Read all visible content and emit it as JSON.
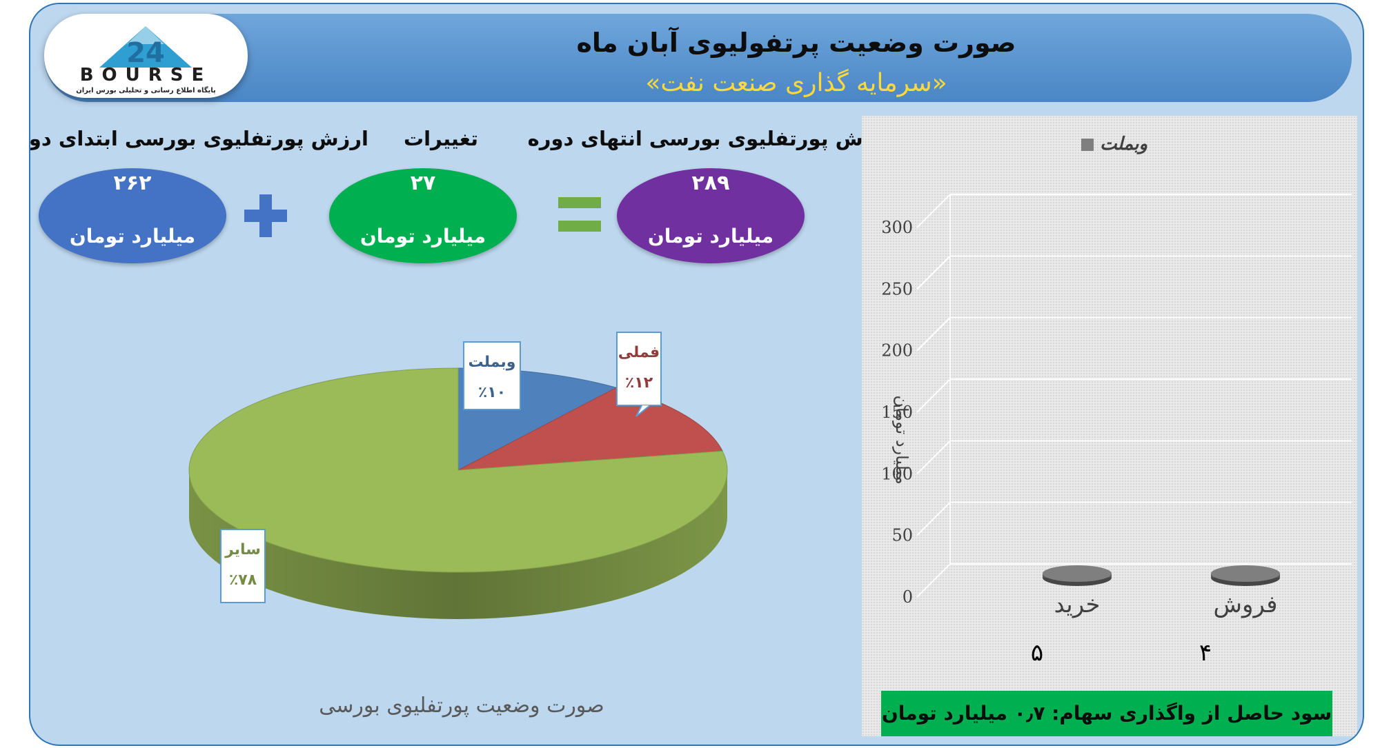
{
  "header": {
    "title": "صورت وضعیت پرتفولیوی آبان ماه",
    "subtitle": "«سرمایه گذاری صنعت نفت»",
    "logo_text": "BOURSE",
    "logo_number": "24",
    "logo_sub": "پایگاه اطلاع رسانی و تحلیلی بورس ایران"
  },
  "summary": {
    "end": {
      "label": "ارزش پورتفلیوی بورسی انتهای دوره",
      "value": "۲۸۹",
      "unit": "میلیارد تومان",
      "color": "#7030a0"
    },
    "change": {
      "label": "تغییرات",
      "value": "۲۷",
      "unit": "میلیارد تومان",
      "color": "#00b050"
    },
    "start": {
      "label": "ارزش پورتفلیوی بورسی ابتدای دوره",
      "value": "۲۶۲",
      "unit": "میلیارد تومان",
      "color": "#4472c4"
    },
    "plus_color": "#4472c4",
    "equals_color": "#70ad47"
  },
  "chart_data": [
    {
      "type": "pie",
      "title": "صورت وضعیت پورتفلیوی بورسی",
      "slices": [
        {
          "name": "وبملت",
          "value": 10,
          "label": "٪۱۰",
          "color": "#4f81bd"
        },
        {
          "name": "فملی",
          "value": 12,
          "label": "٪۱۲",
          "color": "#c0504d"
        },
        {
          "name": "سایر",
          "value": 78,
          "label": "٪۷۸",
          "color": "#9bbb59"
        }
      ]
    },
    {
      "type": "bar",
      "legend": [
        "وبملت"
      ],
      "legend_position": "top",
      "categories": [
        "خرید",
        "فروش"
      ],
      "values": [
        5,
        4
      ],
      "value_labels": [
        "۵",
        "۴"
      ],
      "ylabel": "میلیارد تومان",
      "ylim": [
        0,
        300
      ],
      "yticks": [
        "0",
        "50",
        "100",
        "150",
        "200",
        "250",
        "300"
      ],
      "grid": true,
      "series_color": "#7f7f7f"
    }
  ],
  "footer": {
    "profit_note": "سود حاصل از واگذاری سهام: ۰٫۷ میلیارد تومان"
  }
}
